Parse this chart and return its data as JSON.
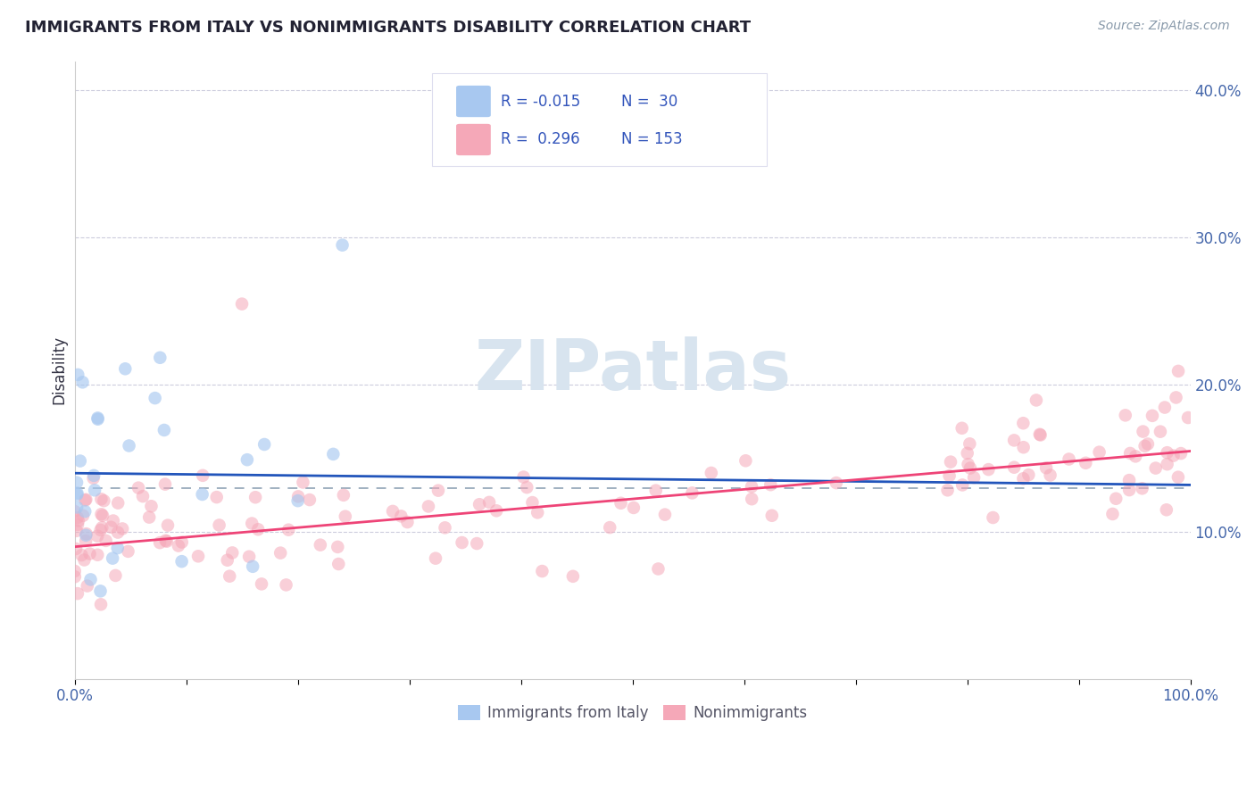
{
  "title": "IMMIGRANTS FROM ITALY VS NONIMMIGRANTS DISABILITY CORRELATION CHART",
  "source": "Source: ZipAtlas.com",
  "ylabel": "Disability",
  "xlim": [
    0.0,
    100.0
  ],
  "ylim": [
    0.0,
    42.0
  ],
  "ytick_vals": [
    10.0,
    20.0,
    30.0,
    40.0
  ],
  "color_blue": "#A8C8F0",
  "color_pink": "#F5A8B8",
  "line_blue": "#2255BB",
  "line_pink": "#EE4477",
  "dashed_color": "#99AABB",
  "grid_color": "#CCCCDD",
  "watermark_color": "#D8E4EF",
  "blue_start_y": 14.0,
  "blue_end_y": 13.2,
  "pink_start_y": 9.0,
  "pink_end_y": 15.5,
  "dashed_y": 13.0,
  "blue_seed": 7,
  "pink_seed": 42
}
